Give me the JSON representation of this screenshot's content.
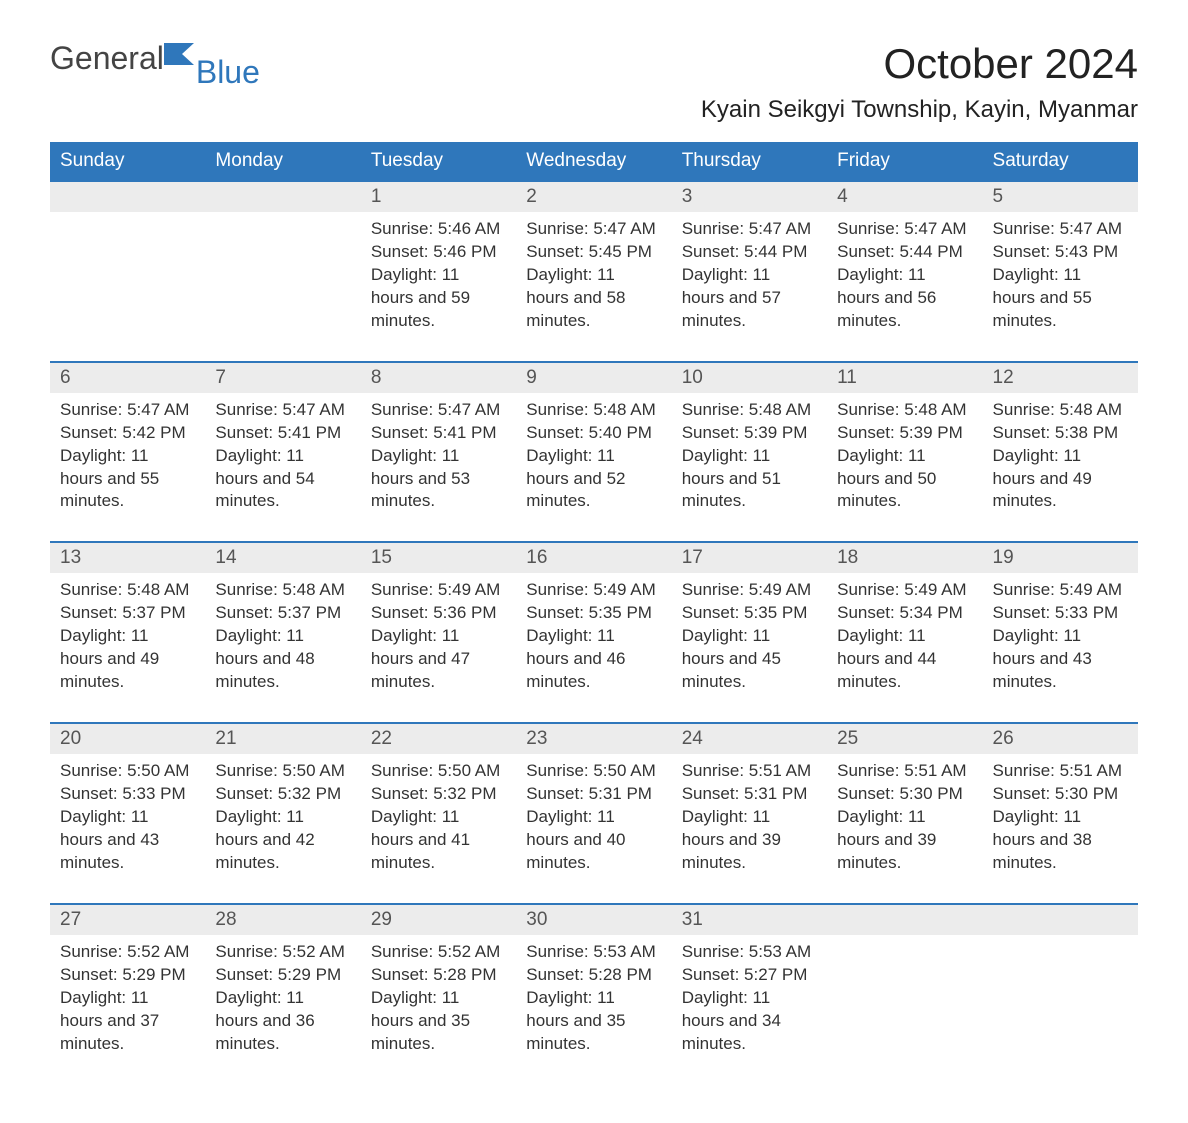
{
  "logo": {
    "general": "General",
    "blue": "Blue"
  },
  "title": "October 2024",
  "location": "Kyain Seikgyi Township, Kayin, Myanmar",
  "colors": {
    "accent": "#2f77bb",
    "header_text": "#ffffff",
    "daynum_bg": "#ececec",
    "body_text": "#333333"
  },
  "day_headers": [
    "Sunday",
    "Monday",
    "Tuesday",
    "Wednesday",
    "Thursday",
    "Friday",
    "Saturday"
  ],
  "weeks": [
    [
      {
        "n": "",
        "sunrise": "",
        "sunset": "",
        "daylight": ""
      },
      {
        "n": "",
        "sunrise": "",
        "sunset": "",
        "daylight": ""
      },
      {
        "n": "1",
        "sunrise": "Sunrise: 5:46 AM",
        "sunset": "Sunset: 5:46 PM",
        "daylight": "Daylight: 11 hours and 59 minutes."
      },
      {
        "n": "2",
        "sunrise": "Sunrise: 5:47 AM",
        "sunset": "Sunset: 5:45 PM",
        "daylight": "Daylight: 11 hours and 58 minutes."
      },
      {
        "n": "3",
        "sunrise": "Sunrise: 5:47 AM",
        "sunset": "Sunset: 5:44 PM",
        "daylight": "Daylight: 11 hours and 57 minutes."
      },
      {
        "n": "4",
        "sunrise": "Sunrise: 5:47 AM",
        "sunset": "Sunset: 5:44 PM",
        "daylight": "Daylight: 11 hours and 56 minutes."
      },
      {
        "n": "5",
        "sunrise": "Sunrise: 5:47 AM",
        "sunset": "Sunset: 5:43 PM",
        "daylight": "Daylight: 11 hours and 55 minutes."
      }
    ],
    [
      {
        "n": "6",
        "sunrise": "Sunrise: 5:47 AM",
        "sunset": "Sunset: 5:42 PM",
        "daylight": "Daylight: 11 hours and 55 minutes."
      },
      {
        "n": "7",
        "sunrise": "Sunrise: 5:47 AM",
        "sunset": "Sunset: 5:41 PM",
        "daylight": "Daylight: 11 hours and 54 minutes."
      },
      {
        "n": "8",
        "sunrise": "Sunrise: 5:47 AM",
        "sunset": "Sunset: 5:41 PM",
        "daylight": "Daylight: 11 hours and 53 minutes."
      },
      {
        "n": "9",
        "sunrise": "Sunrise: 5:48 AM",
        "sunset": "Sunset: 5:40 PM",
        "daylight": "Daylight: 11 hours and 52 minutes."
      },
      {
        "n": "10",
        "sunrise": "Sunrise: 5:48 AM",
        "sunset": "Sunset: 5:39 PM",
        "daylight": "Daylight: 11 hours and 51 minutes."
      },
      {
        "n": "11",
        "sunrise": "Sunrise: 5:48 AM",
        "sunset": "Sunset: 5:39 PM",
        "daylight": "Daylight: 11 hours and 50 minutes."
      },
      {
        "n": "12",
        "sunrise": "Sunrise: 5:48 AM",
        "sunset": "Sunset: 5:38 PM",
        "daylight": "Daylight: 11 hours and 49 minutes."
      }
    ],
    [
      {
        "n": "13",
        "sunrise": "Sunrise: 5:48 AM",
        "sunset": "Sunset: 5:37 PM",
        "daylight": "Daylight: 11 hours and 49 minutes."
      },
      {
        "n": "14",
        "sunrise": "Sunrise: 5:48 AM",
        "sunset": "Sunset: 5:37 PM",
        "daylight": "Daylight: 11 hours and 48 minutes."
      },
      {
        "n": "15",
        "sunrise": "Sunrise: 5:49 AM",
        "sunset": "Sunset: 5:36 PM",
        "daylight": "Daylight: 11 hours and 47 minutes."
      },
      {
        "n": "16",
        "sunrise": "Sunrise: 5:49 AM",
        "sunset": "Sunset: 5:35 PM",
        "daylight": "Daylight: 11 hours and 46 minutes."
      },
      {
        "n": "17",
        "sunrise": "Sunrise: 5:49 AM",
        "sunset": "Sunset: 5:35 PM",
        "daylight": "Daylight: 11 hours and 45 minutes."
      },
      {
        "n": "18",
        "sunrise": "Sunrise: 5:49 AM",
        "sunset": "Sunset: 5:34 PM",
        "daylight": "Daylight: 11 hours and 44 minutes."
      },
      {
        "n": "19",
        "sunrise": "Sunrise: 5:49 AM",
        "sunset": "Sunset: 5:33 PM",
        "daylight": "Daylight: 11 hours and 43 minutes."
      }
    ],
    [
      {
        "n": "20",
        "sunrise": "Sunrise: 5:50 AM",
        "sunset": "Sunset: 5:33 PM",
        "daylight": "Daylight: 11 hours and 43 minutes."
      },
      {
        "n": "21",
        "sunrise": "Sunrise: 5:50 AM",
        "sunset": "Sunset: 5:32 PM",
        "daylight": "Daylight: 11 hours and 42 minutes."
      },
      {
        "n": "22",
        "sunrise": "Sunrise: 5:50 AM",
        "sunset": "Sunset: 5:32 PM",
        "daylight": "Daylight: 11 hours and 41 minutes."
      },
      {
        "n": "23",
        "sunrise": "Sunrise: 5:50 AM",
        "sunset": "Sunset: 5:31 PM",
        "daylight": "Daylight: 11 hours and 40 minutes."
      },
      {
        "n": "24",
        "sunrise": "Sunrise: 5:51 AM",
        "sunset": "Sunset: 5:31 PM",
        "daylight": "Daylight: 11 hours and 39 minutes."
      },
      {
        "n": "25",
        "sunrise": "Sunrise: 5:51 AM",
        "sunset": "Sunset: 5:30 PM",
        "daylight": "Daylight: 11 hours and 39 minutes."
      },
      {
        "n": "26",
        "sunrise": "Sunrise: 5:51 AM",
        "sunset": "Sunset: 5:30 PM",
        "daylight": "Daylight: 11 hours and 38 minutes."
      }
    ],
    [
      {
        "n": "27",
        "sunrise": "Sunrise: 5:52 AM",
        "sunset": "Sunset: 5:29 PM",
        "daylight": "Daylight: 11 hours and 37 minutes."
      },
      {
        "n": "28",
        "sunrise": "Sunrise: 5:52 AM",
        "sunset": "Sunset: 5:29 PM",
        "daylight": "Daylight: 11 hours and 36 minutes."
      },
      {
        "n": "29",
        "sunrise": "Sunrise: 5:52 AM",
        "sunset": "Sunset: 5:28 PM",
        "daylight": "Daylight: 11 hours and 35 minutes."
      },
      {
        "n": "30",
        "sunrise": "Sunrise: 5:53 AM",
        "sunset": "Sunset: 5:28 PM",
        "daylight": "Daylight: 11 hours and 35 minutes."
      },
      {
        "n": "31",
        "sunrise": "Sunrise: 5:53 AM",
        "sunset": "Sunset: 5:27 PM",
        "daylight": "Daylight: 11 hours and 34 minutes."
      },
      {
        "n": "",
        "sunrise": "",
        "sunset": "",
        "daylight": ""
      },
      {
        "n": "",
        "sunrise": "",
        "sunset": "",
        "daylight": ""
      }
    ]
  ]
}
